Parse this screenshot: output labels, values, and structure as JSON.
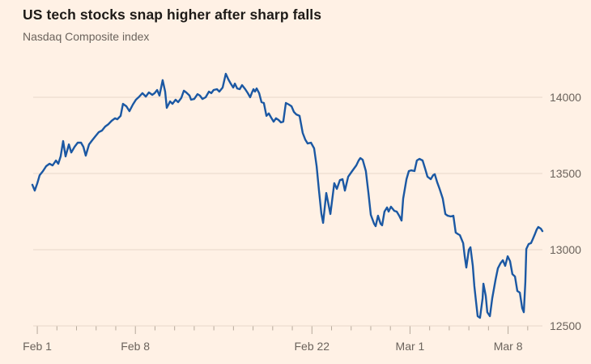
{
  "page": {
    "background_color": "#fff1e5"
  },
  "chart_data": {
    "type": "line",
    "title": "US tech stocks snap higher after sharp falls",
    "subtitle": "Nasdaq Composite index",
    "legend": "none",
    "grid": "horizontal",
    "x_unit": "trading day index (Feb 1 2021 = 0, Mar 9 2021 = 26)",
    "xlim": [
      0,
      26
    ],
    "ylim": [
      12500,
      14300
    ],
    "yticks": [
      12500,
      13000,
      13500,
      14000
    ],
    "ytick_labels": [
      "12500",
      "13000",
      "13500",
      "14000"
    ],
    "xticks_labeled": [
      {
        "day": 0,
        "label": "Feb 1"
      },
      {
        "day": 5,
        "label": "Feb 8"
      },
      {
        "day": 14,
        "label": "Feb 22"
      },
      {
        "day": 19,
        "label": "Mar 1"
      },
      {
        "day": 24,
        "label": "Mar 8"
      }
    ],
    "xticks_minor_days": [
      0,
      1,
      2,
      3,
      4,
      5,
      6,
      7,
      8,
      9,
      10,
      11,
      12,
      13,
      14,
      15,
      16,
      17,
      18,
      19,
      20,
      21,
      22,
      23,
      24,
      25
    ],
    "colors": {
      "line": "#1b58a3",
      "grid": "#e7d8c9",
      "tick": "#b5a89b",
      "axis_label": "#6b635c",
      "title": "#1d1a17",
      "subtitle": "#6b635c"
    },
    "series": [
      {
        "name": "Nasdaq Composite index",
        "color": "#1b58a3",
        "points": [
          [
            0,
            13426
          ],
          [
            0.12,
            13388
          ],
          [
            0.25,
            13436
          ],
          [
            0.37,
            13489
          ],
          [
            0.54,
            13516
          ],
          [
            0.7,
            13548
          ],
          [
            0.87,
            13564
          ],
          [
            1.03,
            13553
          ],
          [
            1.2,
            13585
          ],
          [
            1.32,
            13564
          ],
          [
            1.44,
            13612
          ],
          [
            1.57,
            13713
          ],
          [
            1.69,
            13612
          ],
          [
            1.86,
            13691
          ],
          [
            1.98,
            13638
          ],
          [
            2.15,
            13675
          ],
          [
            2.31,
            13702
          ],
          [
            2.48,
            13702
          ],
          [
            2.6,
            13675
          ],
          [
            2.72,
            13617
          ],
          [
            2.89,
            13691
          ],
          [
            3.05,
            13718
          ],
          [
            3.22,
            13745
          ],
          [
            3.38,
            13771
          ],
          [
            3.55,
            13782
          ],
          [
            3.71,
            13808
          ],
          [
            3.88,
            13824
          ],
          [
            4.04,
            13846
          ],
          [
            4.21,
            13862
          ],
          [
            4.33,
            13856
          ],
          [
            4.5,
            13878
          ],
          [
            4.62,
            13957
          ],
          [
            4.79,
            13941
          ],
          [
            4.95,
            13909
          ],
          [
            5.12,
            13952
          ],
          [
            5.28,
            13984
          ],
          [
            5.45,
            14005
          ],
          [
            5.61,
            14027
          ],
          [
            5.78,
            14005
          ],
          [
            5.94,
            14032
          ],
          [
            6.11,
            14016
          ],
          [
            6.23,
            14027
          ],
          [
            6.36,
            14048
          ],
          [
            6.48,
            14011
          ],
          [
            6.64,
            14112
          ],
          [
            6.77,
            14037
          ],
          [
            6.85,
            13931
          ],
          [
            7.02,
            13973
          ],
          [
            7.14,
            13957
          ],
          [
            7.3,
            13984
          ],
          [
            7.43,
            13968
          ],
          [
            7.59,
            13995
          ],
          [
            7.72,
            14043
          ],
          [
            7.84,
            14032
          ],
          [
            8.01,
            14011
          ],
          [
            8.09,
            13984
          ],
          [
            8.25,
            13989
          ],
          [
            8.42,
            14021
          ],
          [
            8.54,
            14011
          ],
          [
            8.67,
            13989
          ],
          [
            8.83,
            14000
          ],
          [
            9,
            14037
          ],
          [
            9.12,
            14027
          ],
          [
            9.24,
            14048
          ],
          [
            9.41,
            14053
          ],
          [
            9.53,
            14037
          ],
          [
            9.7,
            14064
          ],
          [
            9.86,
            14154
          ],
          [
            9.99,
            14117
          ],
          [
            10.11,
            14090
          ],
          [
            10.24,
            14064
          ],
          [
            10.32,
            14090
          ],
          [
            10.44,
            14058
          ],
          [
            10.57,
            14053
          ],
          [
            10.69,
            14080
          ],
          [
            10.85,
            14053
          ],
          [
            10.98,
            14027
          ],
          [
            11.1,
            14000
          ],
          [
            11.18,
            14027
          ],
          [
            11.27,
            14053
          ],
          [
            11.35,
            14037
          ],
          [
            11.43,
            14058
          ],
          [
            11.56,
            14027
          ],
          [
            11.68,
            13968
          ],
          [
            11.8,
            13963
          ],
          [
            11.93,
            13878
          ],
          [
            12.05,
            13894
          ],
          [
            12.17,
            13867
          ],
          [
            12.3,
            13840
          ],
          [
            12.42,
            13862
          ],
          [
            12.55,
            13851
          ],
          [
            12.67,
            13835
          ],
          [
            12.79,
            13840
          ],
          [
            12.92,
            13963
          ],
          [
            13.08,
            13952
          ],
          [
            13.21,
            13941
          ],
          [
            13.33,
            13904
          ],
          [
            13.45,
            13888
          ],
          [
            13.62,
            13878
          ],
          [
            13.78,
            13766
          ],
          [
            13.91,
            13723
          ],
          [
            14.03,
            13697
          ],
          [
            14.2,
            13702
          ],
          [
            14.36,
            13665
          ],
          [
            14.49,
            13548
          ],
          [
            14.61,
            13388
          ],
          [
            14.73,
            13239
          ],
          [
            14.82,
            13176
          ],
          [
            14.98,
            13372
          ],
          [
            15.1,
            13293
          ],
          [
            15.19,
            13234
          ],
          [
            15.39,
            13436
          ],
          [
            15.52,
            13399
          ],
          [
            15.68,
            13457
          ],
          [
            15.81,
            13463
          ],
          [
            15.93,
            13388
          ],
          [
            16.1,
            13479
          ],
          [
            16.3,
            13516
          ],
          [
            16.51,
            13553
          ],
          [
            16.63,
            13585
          ],
          [
            16.72,
            13601
          ],
          [
            16.84,
            13590
          ],
          [
            17,
            13516
          ],
          [
            17.13,
            13372
          ],
          [
            17.25,
            13229
          ],
          [
            17.42,
            13170
          ],
          [
            17.5,
            13154
          ],
          [
            17.62,
            13223
          ],
          [
            17.75,
            13170
          ],
          [
            17.83,
            13160
          ],
          [
            17.95,
            13250
          ],
          [
            18.08,
            13277
          ],
          [
            18.16,
            13250
          ],
          [
            18.28,
            13282
          ],
          [
            18.45,
            13255
          ],
          [
            18.57,
            13250
          ],
          [
            18.7,
            13223
          ],
          [
            18.82,
            13191
          ],
          [
            18.9,
            13335
          ],
          [
            19.07,
            13463
          ],
          [
            19.19,
            13516
          ],
          [
            19.31,
            13521
          ],
          [
            19.48,
            13516
          ],
          [
            19.6,
            13585
          ],
          [
            19.73,
            13596
          ],
          [
            19.89,
            13585
          ],
          [
            20.02,
            13532
          ],
          [
            20.14,
            13479
          ],
          [
            20.31,
            13463
          ],
          [
            20.43,
            13489
          ],
          [
            20.51,
            13495
          ],
          [
            20.64,
            13441
          ],
          [
            20.76,
            13399
          ],
          [
            20.92,
            13335
          ],
          [
            21.05,
            13234
          ],
          [
            21.17,
            13223
          ],
          [
            21.33,
            13218
          ],
          [
            21.46,
            13223
          ],
          [
            21.58,
            13112
          ],
          [
            21.71,
            13101
          ],
          [
            21.79,
            13096
          ],
          [
            21.96,
            13043
          ],
          [
            22.04,
            12957
          ],
          [
            22.12,
            12883
          ],
          [
            22.25,
            13000
          ],
          [
            22.33,
            13016
          ],
          [
            22.45,
            12894
          ],
          [
            22.53,
            12761
          ],
          [
            22.62,
            12654
          ],
          [
            22.7,
            12564
          ],
          [
            22.82,
            12553
          ],
          [
            22.95,
            12681
          ],
          [
            22.99,
            12777
          ],
          [
            23.11,
            12697
          ],
          [
            23.19,
            12590
          ],
          [
            23.32,
            12564
          ],
          [
            23.44,
            12681
          ],
          [
            23.61,
            12803
          ],
          [
            23.73,
            12878
          ],
          [
            23.86,
            12910
          ],
          [
            23.98,
            12931
          ],
          [
            24.1,
            12894
          ],
          [
            24.23,
            12957
          ],
          [
            24.35,
            12925
          ],
          [
            24.47,
            12840
          ],
          [
            24.6,
            12824
          ],
          [
            24.72,
            12729
          ],
          [
            24.85,
            12718
          ],
          [
            24.97,
            12617
          ],
          [
            25.05,
            12590
          ],
          [
            25.13,
            12787
          ],
          [
            25.18,
            13005
          ],
          [
            25.3,
            13037
          ],
          [
            25.42,
            13043
          ],
          [
            25.51,
            13069
          ],
          [
            25.63,
            13106
          ],
          [
            25.71,
            13133
          ],
          [
            25.79,
            13149
          ],
          [
            25.92,
            13138
          ],
          [
            26,
            13122
          ]
        ]
      }
    ]
  }
}
